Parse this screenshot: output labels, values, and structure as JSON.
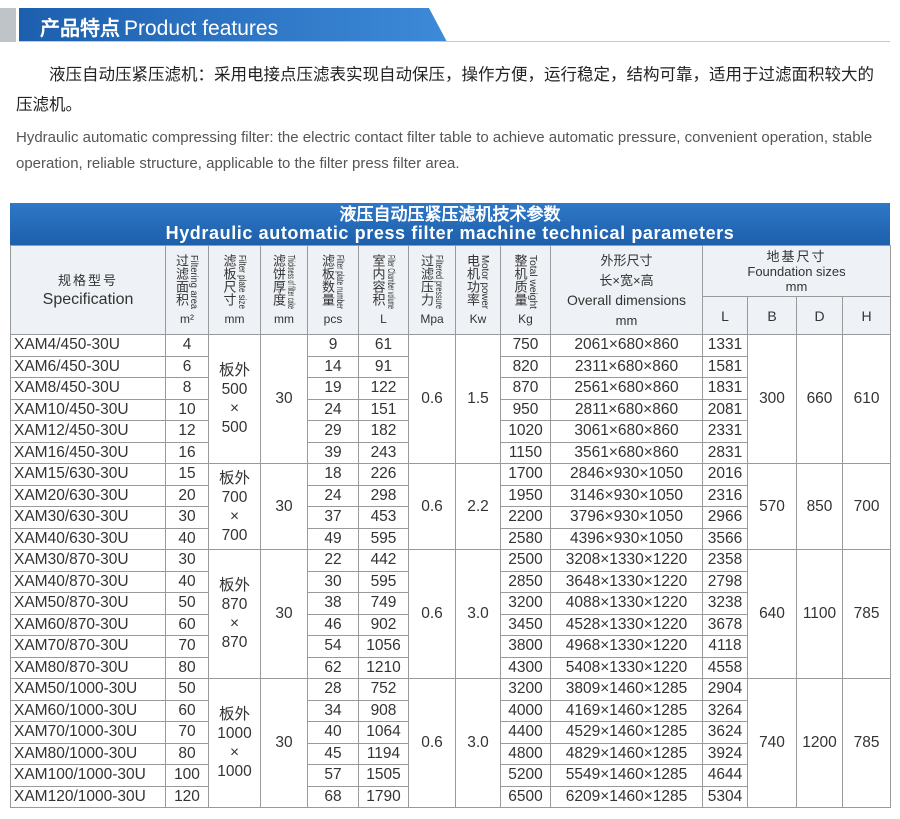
{
  "header": {
    "title_cn": "产品特点",
    "title_en": "Product features"
  },
  "intro": {
    "cn": "液压自动压紧压滤机：采用电接点压滤表实现自动保压，操作方便，运行稳定，结构可靠，适用于过滤面积较大的压滤机。",
    "en": "Hydraulic automatic compressing filter: the electric contact filter table to achieve automatic pressure, convenient operation, stable operation, reliable structure, applicable to the filter press filter area."
  },
  "table": {
    "title_cn": "液压自动压紧压滤机技术参数",
    "title_en": "Hydraulic automatic press filter machine technical parameters",
    "columns": [
      {
        "cn": "规格型号",
        "en": "Specification"
      },
      {
        "cn": "过滤面积",
        "en": "Filtering area",
        "unit": "m²"
      },
      {
        "cn": "滤板尺寸",
        "en": "Filter plate size",
        "unit": "mm"
      },
      {
        "cn": "滤饼厚度",
        "en": "Thickness of filter cake",
        "unit": "mm"
      },
      {
        "cn": "滤板数量",
        "en": "Filter plate number",
        "unit": "pcs"
      },
      {
        "cn": "室内容积",
        "en": "Filter Chamber volume",
        "unit": "L"
      },
      {
        "cn": "过滤压力",
        "en": "Filtered pressure",
        "unit": "Mpa"
      },
      {
        "cn": "电机功率",
        "en": "Motor power",
        "unit": "Kw"
      },
      {
        "cn": "整机质量",
        "en": "Total weight",
        "unit": "Kg"
      },
      {
        "cn": "外形尺寸",
        "sub": "长×宽×高",
        "en": "Overall dimensions",
        "unit": "mm"
      }
    ],
    "foundation": {
      "cn": "地基尺寸",
      "en": "Foundation sizes",
      "unit": "mm",
      "sub": [
        "L",
        "B",
        "D",
        "H"
      ]
    },
    "groups": [
      {
        "plate_size": [
          "板外",
          "500",
          "×",
          "500"
        ],
        "thickness": "30",
        "pressure": "0.6",
        "power": "1.5",
        "B": "300",
        "D": "660",
        "H": "610",
        "rows": [
          [
            "XAM4/450-30U",
            "4",
            "9",
            "61",
            "750",
            "2061×680×860",
            "1331"
          ],
          [
            "XAM6/450-30U",
            "6",
            "14",
            "91",
            "820",
            "2311×680×860",
            "1581"
          ],
          [
            "XAM8/450-30U",
            "8",
            "19",
            "122",
            "870",
            "2561×680×860",
            "1831"
          ],
          [
            "XAM10/450-30U",
            "10",
            "24",
            "151",
            "950",
            "2811×680×860",
            "2081"
          ],
          [
            "XAM12/450-30U",
            "12",
            "29",
            "182",
            "1020",
            "3061×680×860",
            "2331"
          ],
          [
            "XAM16/450-30U",
            "16",
            "39",
            "243",
            "1150",
            "3561×680×860",
            "2831"
          ]
        ]
      },
      {
        "plate_size": [
          "板外",
          "700",
          "×",
          "700"
        ],
        "thickness": "30",
        "pressure": "0.6",
        "power": "2.2",
        "B": "570",
        "D": "850",
        "H": "700",
        "rows": [
          [
            "XAM15/630-30U",
            "15",
            "18",
            "226",
            "1700",
            "2846×930×1050",
            "2016"
          ],
          [
            "XAM20/630-30U",
            "20",
            "24",
            "298",
            "1950",
            "3146×930×1050",
            "2316"
          ],
          [
            "XAM30/630-30U",
            "30",
            "37",
            "453",
            "2200",
            "3796×930×1050",
            "2966"
          ],
          [
            "XAM40/630-30U",
            "40",
            "49",
            "595",
            "2580",
            "4396×930×1050",
            "3566"
          ]
        ]
      },
      {
        "plate_size": [
          "板外",
          "870",
          "×",
          "870"
        ],
        "thickness": "30",
        "pressure": "0.6",
        "power": "3.0",
        "B": "640",
        "D": "1100",
        "H": "785",
        "rows": [
          [
            "XAM30/870-30U",
            "30",
            "22",
            "442",
            "2500",
            "3208×1330×1220",
            "2358"
          ],
          [
            "XAM40/870-30U",
            "40",
            "30",
            "595",
            "2850",
            "3648×1330×1220",
            "2798"
          ],
          [
            "XAM50/870-30U",
            "50",
            "38",
            "749",
            "3200",
            "4088×1330×1220",
            "3238"
          ],
          [
            "XAM60/870-30U",
            "60",
            "46",
            "902",
            "3450",
            "4528×1330×1220",
            "3678"
          ],
          [
            "XAM70/870-30U",
            "70",
            "54",
            "1056",
            "3800",
            "4968×1330×1220",
            "4118"
          ],
          [
            "XAM80/870-30U",
            "80",
            "62",
            "1210",
            "4300",
            "5408×1330×1220",
            "4558"
          ]
        ]
      },
      {
        "plate_size": [
          "板外",
          "1000",
          "×",
          "1000"
        ],
        "thickness": "30",
        "pressure": "0.6",
        "power": "3.0",
        "B": "740",
        "D": "1200",
        "H": "785",
        "rows": [
          [
            "XAM50/1000-30U",
            "50",
            "28",
            "752",
            "3200",
            "3809×1460×1285",
            "2904"
          ],
          [
            "XAM60/1000-30U",
            "60",
            "34",
            "908",
            "4000",
            "4169×1460×1285",
            "3264"
          ],
          [
            "XAM70/1000-30U",
            "70",
            "40",
            "1064",
            "4400",
            "4529×1460×1285",
            "3624"
          ],
          [
            "XAM80/1000-30U",
            "80",
            "45",
            "1194",
            "4800",
            "4829×1460×1285",
            "3924"
          ],
          [
            "XAM100/1000-30U",
            "100",
            "57",
            "1505",
            "5200",
            "5549×1460×1285",
            "4644"
          ],
          [
            "XAM120/1000-30U",
            "120",
            "68",
            "1790",
            "6500",
            "6209×1460×1285",
            "5304"
          ]
        ]
      }
    ]
  }
}
